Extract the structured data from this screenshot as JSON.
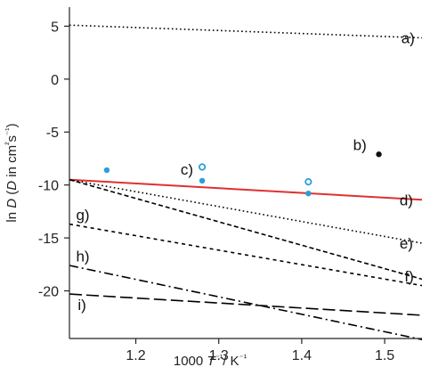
{
  "chart_data": {
    "type": "line",
    "title": "",
    "xlabel_parts": [
      "1000 ",
      "T",
      "⁻¹",
      "/ K",
      "⁻¹"
    ],
    "ylabel_parts": [
      "ln ",
      "D",
      " (",
      "D",
      " in cm",
      "²",
      "s",
      "⁻¹",
      ")"
    ],
    "xlim": [
      1.12,
      1.545
    ],
    "ylim": [
      -24.5,
      6.8
    ],
    "xticks": [
      1.2,
      1.3,
      1.4,
      1.5
    ],
    "xtick_labels": [
      "1.2",
      "1.3",
      "1.4",
      "1.5"
    ],
    "yticks": [
      5,
      0,
      -5,
      -10,
      -15,
      -20
    ],
    "ytick_labels": [
      "5",
      "0",
      "-5",
      "-10",
      "-15",
      "-20"
    ],
    "grid": false,
    "series": [
      {
        "label": "a)",
        "style": "dotted",
        "color": "#000000",
        "x": [
          1.12,
          1.545
        ],
        "y": [
          5.1,
          3.9
        ]
      },
      {
        "label": "d)",
        "style": "solid",
        "color": "#e03030",
        "x": [
          1.12,
          1.545
        ],
        "y": [
          -9.5,
          -11.4
        ]
      },
      {
        "label": "e)",
        "style": "dotted",
        "color": "#000000",
        "x": [
          1.12,
          1.545
        ],
        "y": [
          -9.5,
          -15.5
        ]
      },
      {
        "label": "f)",
        "style": "dashed",
        "color": "#000000",
        "x": [
          1.12,
          1.545
        ],
        "y": [
          -9.5,
          -18.9
        ]
      },
      {
        "label": "g)",
        "style": "short-dash",
        "color": "#000000",
        "x": [
          1.12,
          1.545
        ],
        "y": [
          -13.7,
          -19.5
        ]
      },
      {
        "label": "h)",
        "style": "dash-dot",
        "color": "#000000",
        "x": [
          1.12,
          1.545
        ],
        "y": [
          -17.6,
          -24.6
        ]
      },
      {
        "label": "i)",
        "style": "long-dash",
        "color": "#000000",
        "x": [
          1.12,
          1.545
        ],
        "y": [
          -20.3,
          -22.3
        ]
      }
    ],
    "points": [
      {
        "group": "b)",
        "x": 1.493,
        "y": -7.1,
        "marker": "filled",
        "color": "#111111"
      },
      {
        "group": "c)",
        "x": 1.165,
        "y": -8.6,
        "marker": "filled",
        "color": "#2a9fd6"
      },
      {
        "group": "c)",
        "x": 1.28,
        "y": -9.6,
        "marker": "filled",
        "color": "#2a9fd6"
      },
      {
        "group": "c)",
        "x": 1.408,
        "y": -10.8,
        "marker": "filled",
        "color": "#2a9fd6"
      },
      {
        "group": "c)",
        "x": 1.28,
        "y": -8.3,
        "marker": "open",
        "color": "#2a9fd6"
      },
      {
        "group": "c)",
        "x": 1.408,
        "y": -9.7,
        "marker": "open",
        "color": "#2a9fd6"
      }
    ],
    "annotations": [
      {
        "text": "a)",
        "x": 1.52,
        "y": 3.9,
        "color": "#111111"
      },
      {
        "text": "b)",
        "x": 1.462,
        "y": -6.2,
        "color": "#111111"
      },
      {
        "text": "c)",
        "x": 1.254,
        "y": -8.5,
        "color": "#2a9fd6"
      },
      {
        "text": "d)",
        "x": 1.518,
        "y": -11.4,
        "color": "#e03030"
      },
      {
        "text": "e)",
        "x": 1.518,
        "y": -15.5,
        "color": "#111111"
      },
      {
        "text": "f)",
        "x": 1.524,
        "y": -18.6,
        "color": "#111111"
      },
      {
        "text": "g)",
        "x": 1.128,
        "y": -12.8,
        "color": "#111111"
      },
      {
        "text": "h)",
        "x": 1.128,
        "y": -16.7,
        "color": "#111111"
      },
      {
        "text": "i)",
        "x": 1.13,
        "y": -21.3,
        "color": "#111111"
      }
    ]
  }
}
